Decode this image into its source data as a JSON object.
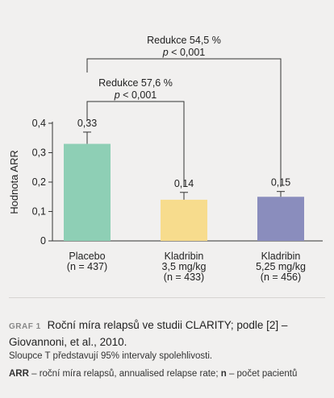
{
  "chart_data": {
    "type": "bar",
    "ylabel": "Hodnota ARR",
    "ylim": [
      0,
      0.4
    ],
    "yticks": [
      "0",
      "0,1",
      "0,2",
      "0,3",
      "0,4"
    ],
    "yticks_values": [
      0,
      0.1,
      0.2,
      0.3,
      0.4
    ],
    "categories": [
      [
        "Placebo",
        "(n = 437)"
      ],
      [
        "Kladribin",
        "3,5 mg/kg",
        "(n = 433)"
      ],
      [
        "Kladribin",
        "5,25 mg/kg",
        "(n = 456)"
      ]
    ],
    "values": [
      0.33,
      0.14,
      0.15
    ],
    "value_labels": [
      "0,33",
      "0,14",
      "0,15"
    ],
    "error_bars_upper": [
      0.37,
      0.165,
      0.168
    ],
    "colors": [
      "#8ecfb5",
      "#f7dc8d",
      "#8a8dbd"
    ],
    "comparisons": [
      {
        "from": 0,
        "to": 1,
        "label": "Redukce 57,6 %",
        "p_prefix": "p",
        "p_rest": " < 0,001"
      },
      {
        "from": 0,
        "to": 2,
        "label": "Redukce 54,5 %",
        "p_prefix": "p",
        "p_rest": " < 0,001"
      }
    ]
  },
  "caption": {
    "tag": "GRAF 1",
    "title": "Roční míra relapsů ve studii CLARITY; podle [2] – Giovannoni, et al., 2010.",
    "note1": "Sloupce T představují 95% intervaly spolehlivosti.",
    "note2_abbr1": "ARR",
    "note2_text1": " – roční míra relapsů, annualised relapse rate; ",
    "note2_abbr2": "n",
    "note2_text2": " – počet pacientů"
  }
}
